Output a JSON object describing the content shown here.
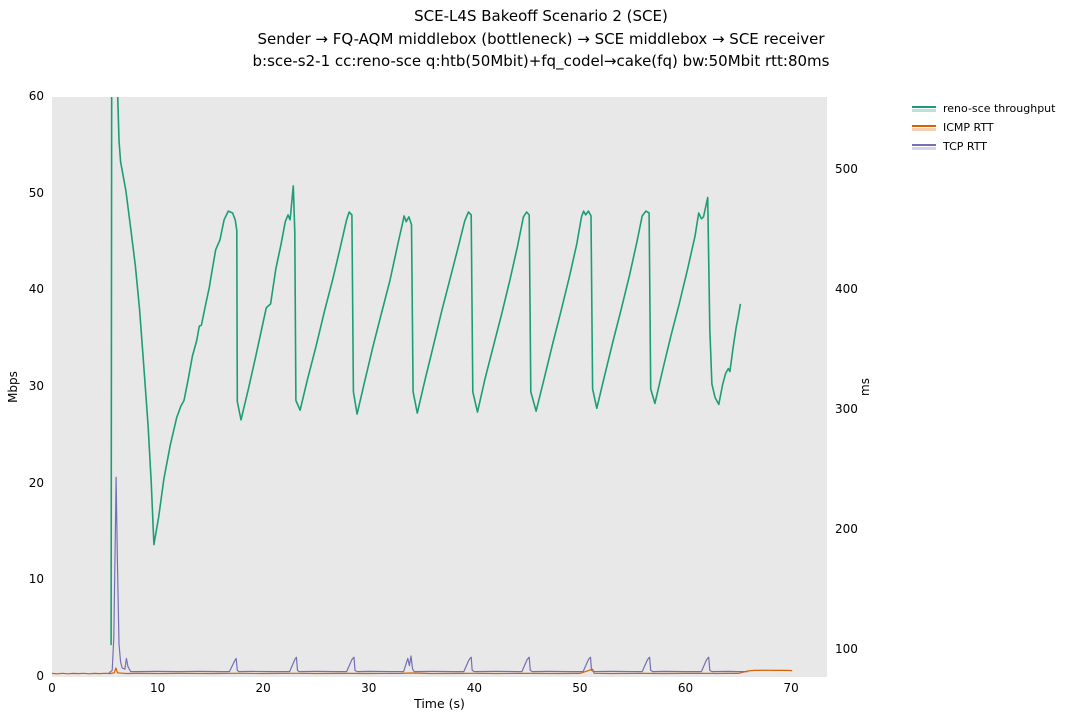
{
  "title": {
    "line1": "SCE-L4S Bakeoff Scenario 2 (SCE)",
    "line2": "Sender → FQ-AQM middlebox (bottleneck) → SCE middlebox → SCE receiver",
    "line3": "b:sce-s2-1 cc:reno-sce q:htb(50Mbit)+fq_codel→cake(fq) bw:50Mbit rtt:80ms"
  },
  "axes": {
    "x": {
      "label": "Time (s)",
      "ticks": [
        0,
        10,
        20,
        30,
        40,
        50,
        60,
        70
      ]
    },
    "y_left": {
      "label": "Mbps",
      "ticks": [
        0,
        10,
        20,
        30,
        40,
        50,
        60
      ]
    },
    "y_right": {
      "label": "ms",
      "ticks": [
        100,
        200,
        300,
        400,
        500
      ]
    }
  },
  "chart_data": {
    "type": "line",
    "title": "SCE-L4S Bakeoff Scenario 2 (SCE)",
    "subtitle": "Sender → FQ-AQM middlebox (bottleneck) → SCE middlebox → SCE receiver",
    "subtitle2": "b:sce-s2-1 cc:reno-sce q:htb(50Mbit)+fq_codel→cake(fq) bw:50Mbit rtt:80ms",
    "xlabel": "Time (s)",
    "ylabel_left": "Mbps",
    "ylabel_right": "ms",
    "xlim": [
      0,
      73.4
    ],
    "ylim_left": [
      0,
      60
    ],
    "ylim_right": [
      77.5,
      561
    ],
    "grid": false,
    "plot_bg": "#e8e8e8",
    "legend_position": "top-right-outside",
    "series": [
      {
        "name": "reno-sce throughput",
        "axis": "left",
        "color": "#1b9e77",
        "width": 1.6,
        "points": [
          [
            5.6,
            3.3
          ],
          [
            5.65,
            63
          ],
          [
            6.15,
            63
          ],
          [
            6.35,
            55.5
          ],
          [
            6.5,
            53.3
          ],
          [
            7.0,
            50.3
          ],
          [
            7.5,
            46.0
          ],
          [
            7.9,
            42.5
          ],
          [
            8.3,
            38.0
          ],
          [
            8.7,
            32.0
          ],
          [
            9.1,
            26.0
          ],
          [
            9.4,
            20.0
          ],
          [
            9.65,
            13.7
          ],
          [
            10.1,
            16.5
          ],
          [
            10.6,
            20.5
          ],
          [
            11.2,
            24.0
          ],
          [
            11.8,
            26.8
          ],
          [
            12.2,
            28.0
          ],
          [
            12.5,
            28.6
          ],
          [
            12.9,
            30.8
          ],
          [
            13.3,
            33.2
          ],
          [
            13.7,
            34.8
          ],
          [
            13.95,
            36.3
          ],
          [
            14.15,
            36.4
          ],
          [
            14.6,
            38.8
          ],
          [
            14.9,
            40.3
          ],
          [
            15.2,
            42.3
          ],
          [
            15.5,
            44.2
          ],
          [
            15.9,
            45.2
          ],
          [
            16.3,
            47.3
          ],
          [
            16.7,
            48.2
          ],
          [
            17.1,
            48.0
          ],
          [
            17.35,
            47.3
          ],
          [
            17.5,
            46.2
          ],
          [
            17.55,
            28.5
          ],
          [
            17.9,
            26.6
          ],
          [
            18.6,
            29.8
          ],
          [
            19.3,
            33.2
          ],
          [
            19.9,
            36.2
          ],
          [
            20.3,
            38.2
          ],
          [
            20.7,
            38.6
          ],
          [
            21.2,
            42.2
          ],
          [
            21.7,
            44.8
          ],
          [
            22.1,
            47.1
          ],
          [
            22.35,
            47.8
          ],
          [
            22.55,
            47.3
          ],
          [
            22.85,
            50.8
          ],
          [
            23.0,
            46.0
          ],
          [
            23.1,
            28.6
          ],
          [
            23.5,
            27.6
          ],
          [
            24.2,
            30.8
          ],
          [
            25.0,
            34.2
          ],
          [
            25.8,
            37.8
          ],
          [
            26.6,
            41.2
          ],
          [
            27.3,
            44.4
          ],
          [
            27.9,
            47.3
          ],
          [
            28.15,
            48.1
          ],
          [
            28.4,
            47.8
          ],
          [
            28.55,
            29.5
          ],
          [
            28.9,
            27.2
          ],
          [
            29.6,
            30.5
          ],
          [
            30.4,
            34.2
          ],
          [
            31.2,
            37.6
          ],
          [
            32.0,
            41.0
          ],
          [
            32.8,
            45.0
          ],
          [
            33.2,
            46.9
          ],
          [
            33.35,
            47.7
          ],
          [
            33.55,
            47.1
          ],
          [
            33.8,
            47.6
          ],
          [
            34.05,
            46.8
          ],
          [
            34.2,
            29.5
          ],
          [
            34.6,
            27.3
          ],
          [
            35.3,
            30.6
          ],
          [
            36.1,
            34.2
          ],
          [
            36.9,
            37.8
          ],
          [
            37.7,
            41.2
          ],
          [
            38.5,
            44.6
          ],
          [
            39.1,
            47.2
          ],
          [
            39.45,
            48.1
          ],
          [
            39.7,
            47.8
          ],
          [
            39.85,
            29.5
          ],
          [
            40.3,
            27.4
          ],
          [
            41.0,
            30.8
          ],
          [
            41.8,
            34.2
          ],
          [
            42.6,
            37.6
          ],
          [
            43.4,
            41.2
          ],
          [
            44.1,
            44.6
          ],
          [
            44.65,
            47.6
          ],
          [
            44.95,
            48.1
          ],
          [
            45.2,
            47.8
          ],
          [
            45.35,
            29.5
          ],
          [
            45.85,
            27.5
          ],
          [
            46.6,
            30.8
          ],
          [
            47.4,
            34.4
          ],
          [
            48.2,
            37.8
          ],
          [
            49.0,
            41.4
          ],
          [
            49.7,
            44.8
          ],
          [
            50.15,
            47.6
          ],
          [
            50.35,
            48.2
          ],
          [
            50.55,
            47.8
          ],
          [
            50.8,
            48.2
          ],
          [
            51.05,
            47.7
          ],
          [
            51.2,
            29.8
          ],
          [
            51.6,
            27.8
          ],
          [
            52.3,
            31.0
          ],
          [
            53.1,
            34.6
          ],
          [
            53.9,
            38.0
          ],
          [
            54.7,
            41.6
          ],
          [
            55.4,
            45.0
          ],
          [
            55.9,
            47.7
          ],
          [
            56.25,
            48.2
          ],
          [
            56.55,
            48.0
          ],
          [
            56.7,
            29.8
          ],
          [
            57.1,
            28.3
          ],
          [
            57.8,
            31.6
          ],
          [
            58.6,
            35.2
          ],
          [
            59.4,
            38.6
          ],
          [
            60.2,
            42.2
          ],
          [
            60.9,
            45.6
          ],
          [
            61.25,
            48.0
          ],
          [
            61.5,
            47.4
          ],
          [
            61.7,
            47.6
          ],
          [
            62.1,
            49.6
          ],
          [
            62.3,
            36.0
          ],
          [
            62.5,
            30.3
          ],
          [
            62.8,
            28.9
          ],
          [
            63.15,
            28.2
          ],
          [
            63.5,
            30.2
          ],
          [
            63.8,
            31.4
          ],
          [
            64.05,
            31.9
          ],
          [
            64.2,
            31.6
          ],
          [
            64.5,
            34.0
          ],
          [
            64.8,
            36.2
          ],
          [
            65.0,
            37.3
          ],
          [
            65.2,
            38.6
          ]
        ]
      },
      {
        "name": "ICMP RTT",
        "axis": "right",
        "color": "#d95f02",
        "width": 1.2,
        "points": [
          [
            0,
            80.5
          ],
          [
            0.5,
            80.2
          ],
          [
            1.0,
            80.6
          ],
          [
            1.5,
            80.2
          ],
          [
            2.0,
            80.5
          ],
          [
            2.5,
            80.3
          ],
          [
            3.0,
            80.6
          ],
          [
            3.5,
            80.2
          ],
          [
            4.0,
            80.5
          ],
          [
            4.5,
            80.3
          ],
          [
            5.0,
            80.6
          ],
          [
            5.5,
            80.4
          ],
          [
            5.9,
            81.0
          ],
          [
            6.05,
            85.0
          ],
          [
            6.2,
            81.0
          ],
          [
            7.0,
            80.4
          ],
          [
            8.0,
            80.5
          ],
          [
            10.0,
            80.4
          ],
          [
            12.0,
            80.5
          ],
          [
            15.0,
            80.4
          ],
          [
            17.5,
            80.6
          ],
          [
            20.0,
            80.4
          ],
          [
            23.0,
            80.6
          ],
          [
            25.0,
            80.4
          ],
          [
            28.0,
            80.5
          ],
          [
            30.0,
            80.4
          ],
          [
            33.0,
            80.5
          ],
          [
            34.0,
            80.8
          ],
          [
            36.0,
            80.4
          ],
          [
            39.0,
            80.5
          ],
          [
            40.0,
            80.6
          ],
          [
            42.0,
            80.4
          ],
          [
            45.0,
            80.5
          ],
          [
            48.0,
            80.4
          ],
          [
            50.0,
            80.5
          ],
          [
            51.2,
            84.0
          ],
          [
            51.35,
            80.6
          ],
          [
            53.0,
            80.4
          ],
          [
            56.0,
            80.5
          ],
          [
            58.0,
            80.4
          ],
          [
            60.0,
            80.5
          ],
          [
            62.0,
            80.6
          ],
          [
            63.0,
            80.4
          ],
          [
            64.0,
            80.6
          ],
          [
            65.0,
            80.5
          ],
          [
            65.9,
            82.5
          ],
          [
            66.5,
            83.0
          ],
          [
            67.5,
            83.2
          ],
          [
            68.5,
            83.0
          ],
          [
            69.5,
            83.1
          ],
          [
            70.1,
            82.8
          ]
        ]
      },
      {
        "name": "TCP RTT",
        "axis": "right",
        "color": "#7570b3",
        "width": 1.2,
        "points": [
          [
            5.4,
            81.0
          ],
          [
            5.7,
            83.0
          ],
          [
            5.85,
            110.0
          ],
          [
            6.0,
            200.0
          ],
          [
            6.07,
            244.0
          ],
          [
            6.2,
            170.0
          ],
          [
            6.35,
            105.0
          ],
          [
            6.5,
            90.0
          ],
          [
            6.65,
            85.0
          ],
          [
            6.9,
            84.0
          ],
          [
            7.05,
            93.0
          ],
          [
            7.2,
            86.0
          ],
          [
            7.45,
            82.0
          ],
          [
            8.0,
            82.0
          ],
          [
            10.0,
            82.2
          ],
          [
            12.0,
            82.0
          ],
          [
            14.0,
            82.2
          ],
          [
            16.0,
            82.0
          ],
          [
            16.8,
            82.0
          ],
          [
            17.3,
            91.0
          ],
          [
            17.45,
            93.0
          ],
          [
            17.55,
            83.0
          ],
          [
            17.7,
            82.0
          ],
          [
            19.0,
            82.2
          ],
          [
            21.0,
            82.0
          ],
          [
            22.5,
            82.0
          ],
          [
            23.0,
            92.0
          ],
          [
            23.15,
            94.0
          ],
          [
            23.25,
            83.0
          ],
          [
            23.4,
            82.0
          ],
          [
            25.0,
            82.2
          ],
          [
            27.0,
            82.0
          ],
          [
            27.9,
            82.0
          ],
          [
            28.4,
            92.0
          ],
          [
            28.6,
            94.0
          ],
          [
            28.7,
            83.0
          ],
          [
            28.9,
            82.0
          ],
          [
            30.0,
            82.2
          ],
          [
            32.0,
            82.0
          ],
          [
            33.3,
            82.0
          ],
          [
            33.7,
            93.0
          ],
          [
            33.85,
            87.0
          ],
          [
            34.0,
            95.0
          ],
          [
            34.15,
            84.0
          ],
          [
            34.3,
            82.0
          ],
          [
            36.0,
            82.2
          ],
          [
            38.0,
            82.0
          ],
          [
            39.0,
            82.0
          ],
          [
            39.5,
            92.0
          ],
          [
            39.7,
            94.0
          ],
          [
            39.8,
            83.0
          ],
          [
            40.0,
            82.0
          ],
          [
            42.0,
            82.2
          ],
          [
            44.0,
            82.0
          ],
          [
            44.5,
            82.0
          ],
          [
            45.0,
            92.0
          ],
          [
            45.2,
            94.0
          ],
          [
            45.3,
            83.0
          ],
          [
            45.5,
            82.0
          ],
          [
            47.0,
            82.2
          ],
          [
            49.0,
            82.0
          ],
          [
            50.3,
            82.0
          ],
          [
            50.8,
            92.0
          ],
          [
            51.0,
            94.0
          ],
          [
            51.1,
            83.0
          ],
          [
            51.3,
            82.0
          ],
          [
            53.0,
            82.2
          ],
          [
            55.0,
            82.0
          ],
          [
            55.9,
            82.0
          ],
          [
            56.4,
            92.0
          ],
          [
            56.6,
            94.0
          ],
          [
            56.7,
            83.0
          ],
          [
            56.9,
            82.0
          ],
          [
            58.0,
            82.2
          ],
          [
            60.0,
            82.0
          ],
          [
            61.5,
            82.0
          ],
          [
            62.0,
            92.0
          ],
          [
            62.2,
            94.0
          ],
          [
            62.3,
            83.0
          ],
          [
            62.5,
            82.0
          ],
          [
            64.0,
            82.2
          ],
          [
            65.0,
            82.0
          ],
          [
            65.9,
            82.0
          ]
        ]
      }
    ]
  }
}
